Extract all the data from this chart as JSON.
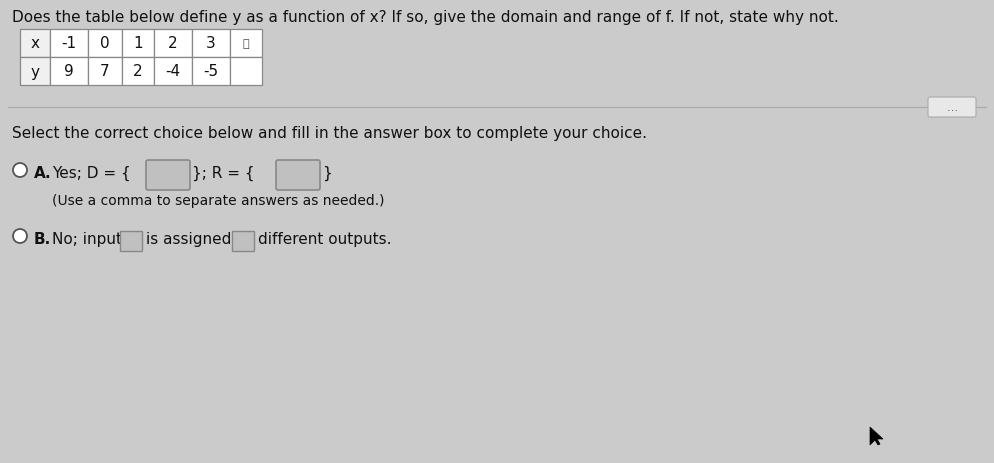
{
  "title": "Does the table below define y as a function of x? If so, give the domain and range of f. If not, state why not.",
  "table_headers": [
    "x",
    "-1",
    "0",
    "1",
    "2",
    "3",
    ""
  ],
  "table_row2": [
    "y",
    "9",
    "7",
    "2",
    "-4",
    "-5",
    ""
  ],
  "select_text": "Select the correct choice below and fill in the answer box to complete your choice.",
  "option_a_prefix": "Yes; D = {",
  "option_a_mid": "}; R = {",
  "option_a_end": "}",
  "option_a_note": "(Use a comma to separate answers as needed.)",
  "option_b_prefix": "No; input",
  "option_b_mid": "is assigned",
  "option_b_end": "different outputs.",
  "bg_top": "#cbcbcb",
  "bg_bottom": "#d0d0d0",
  "table_bg": "#ffffff",
  "table_header_bg": "#f0f0f0",
  "text_color": "#111111",
  "box_border_color": "#999999",
  "box_fill_color": "#c0c0c0",
  "sep_color": "#aaaaaa",
  "dots_button_color": "#e8e8e8",
  "title_fontsize": 11.0,
  "body_fontsize": 11.0,
  "note_fontsize": 10.0,
  "table_fontsize": 11.0
}
